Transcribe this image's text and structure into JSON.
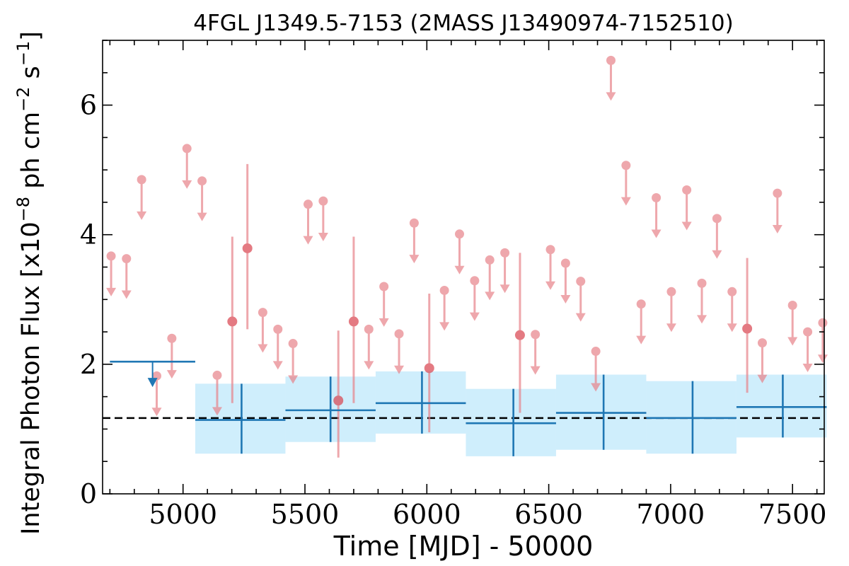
{
  "chart_data": {
    "type": "scatter",
    "title": "4FGL J1349.5-7153 (2MASS J13490974-7152510)",
    "xlabel": "Time [MJD] - 50000",
    "ylabel_main": "Integral Photon Flux [x10",
    "ylabel_exp1": "−8",
    "ylabel_mid": " ph cm",
    "ylabel_exp2": "−2",
    "ylabel_s": " s",
    "ylabel_exp3": "−1",
    "ylabel_end": "]",
    "xlim": [
      4670,
      7630
    ],
    "ylim": [
      0,
      7
    ],
    "x_ticks": [
      "5000",
      "5500",
      "6000",
      "6500",
      "7000",
      "7500"
    ],
    "y_ticks": [
      "0",
      "2",
      "4",
      "6"
    ],
    "x_tick_values": [
      5000,
      5500,
      6000,
      6500,
      7000,
      7500
    ],
    "y_tick_values": [
      0,
      2,
      4,
      6
    ],
    "colors": {
      "short_bins": "#e8838a",
      "long_bins": "#1f77b4",
      "long_band": "#cfeefc",
      "mean_line": "#000000"
    },
    "mean_flux": 1.17,
    "short_bin_upper_limits": [
      {
        "x": 4705,
        "y": 3.67
      },
      {
        "x": 4768,
        "y": 3.63
      },
      {
        "x": 4830,
        "y": 4.85
      },
      {
        "x": 4892,
        "y": 1.82
      },
      {
        "x": 4954,
        "y": 2.4
      },
      {
        "x": 5016,
        "y": 5.33
      },
      {
        "x": 5078,
        "y": 4.83
      },
      {
        "x": 5140,
        "y": 1.83
      },
      {
        "x": 5327,
        "y": 2.8
      },
      {
        "x": 5389,
        "y": 2.54
      },
      {
        "x": 5451,
        "y": 2.32
      },
      {
        "x": 5513,
        "y": 4.47
      },
      {
        "x": 5575,
        "y": 4.52
      },
      {
        "x": 5762,
        "y": 2.54
      },
      {
        "x": 5824,
        "y": 3.2
      },
      {
        "x": 5886,
        "y": 2.47
      },
      {
        "x": 5948,
        "y": 4.18
      },
      {
        "x": 6072,
        "y": 3.14
      },
      {
        "x": 6134,
        "y": 4.01
      },
      {
        "x": 6196,
        "y": 3.29
      },
      {
        "x": 6258,
        "y": 3.61
      },
      {
        "x": 6320,
        "y": 3.72
      },
      {
        "x": 6445,
        "y": 2.46
      },
      {
        "x": 6507,
        "y": 3.77
      },
      {
        "x": 6569,
        "y": 3.56
      },
      {
        "x": 6631,
        "y": 3.28
      },
      {
        "x": 6693,
        "y": 2.2
      },
      {
        "x": 6755,
        "y": 6.69
      },
      {
        "x": 6817,
        "y": 5.07
      },
      {
        "x": 6879,
        "y": 2.93
      },
      {
        "x": 6941,
        "y": 4.57
      },
      {
        "x": 7003,
        "y": 3.12
      },
      {
        "x": 7066,
        "y": 4.69
      },
      {
        "x": 7128,
        "y": 3.25
      },
      {
        "x": 7190,
        "y": 4.25
      },
      {
        "x": 7252,
        "y": 3.12
      },
      {
        "x": 7376,
        "y": 2.33
      },
      {
        "x": 7438,
        "y": 4.64
      },
      {
        "x": 7500,
        "y": 2.91
      },
      {
        "x": 7562,
        "y": 2.5
      },
      {
        "x": 7624,
        "y": 2.64
      }
    ],
    "short_bin_detections": [
      {
        "x": 5202,
        "y": 2.66,
        "ylow": 1.4,
        "yhigh": 3.97
      },
      {
        "x": 5264,
        "y": 3.79,
        "ylow": 2.54,
        "yhigh": 5.09
      },
      {
        "x": 5637,
        "y": 1.44,
        "ylow": 0.56,
        "yhigh": 2.52
      },
      {
        "x": 5700,
        "y": 2.66,
        "ylow": 1.4,
        "yhigh": 3.97
      },
      {
        "x": 6010,
        "y": 1.94,
        "ylow": 0.95,
        "yhigh": 3.09
      },
      {
        "x": 6382,
        "y": 2.45,
        "ylow": 1.25,
        "yhigh": 3.72
      },
      {
        "x": 7314,
        "y": 2.55,
        "ylow": 1.56,
        "yhigh": 3.64
      }
    ],
    "long_bin_upper_limit": {
      "x": 4875,
      "xmin": 4700,
      "xmax": 5050,
      "y": 2.04
    },
    "long_bin_detections": [
      {
        "x": 5240,
        "xmin": 5050,
        "xmax": 5420,
        "y": 1.14,
        "ylow": 0.62,
        "yhigh": 1.7
      },
      {
        "x": 5605,
        "xmin": 5420,
        "xmax": 5790,
        "y": 1.29,
        "ylow": 0.8,
        "yhigh": 1.81
      },
      {
        "x": 5980,
        "xmin": 5790,
        "xmax": 6160,
        "y": 1.4,
        "ylow": 0.93,
        "yhigh": 1.89
      },
      {
        "x": 6355,
        "xmin": 6160,
        "xmax": 6530,
        "y": 1.09,
        "ylow": 0.58,
        "yhigh": 1.62
      },
      {
        "x": 6725,
        "xmin": 6530,
        "xmax": 6900,
        "y": 1.25,
        "ylow": 0.68,
        "yhigh": 1.84
      },
      {
        "x": 7090,
        "xmin": 6900,
        "xmax": 7270,
        "y": 1.17,
        "ylow": 0.62,
        "yhigh": 1.74
      },
      {
        "x": 7460,
        "xmin": 7270,
        "xmax": 7640,
        "y": 1.34,
        "ylow": 0.87,
        "yhigh": 1.84
      }
    ]
  }
}
